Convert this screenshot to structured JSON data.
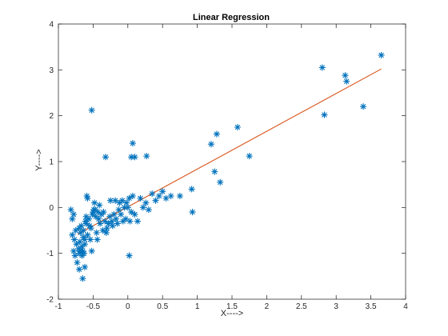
{
  "chart_data": {
    "type": "scatter",
    "title": "Linear Regression",
    "xlabel": "X---->",
    "ylabel": "Y---->",
    "xlim": [
      -1,
      4
    ],
    "ylim": [
      -2,
      4
    ],
    "xticks": [
      "-1",
      "-0.5",
      "0",
      "0.5",
      "1",
      "1.5",
      "2",
      "2.5",
      "3",
      "3.5",
      "4"
    ],
    "yticks": [
      "-2",
      "-1",
      "0",
      "1",
      "2",
      "3",
      "4"
    ],
    "grid": false,
    "series": [
      {
        "kind": "points",
        "marker": "*",
        "color": "#0072BD",
        "x": [
          -0.82,
          -0.8,
          -0.78,
          -0.8,
          -0.77,
          -0.75,
          -0.78,
          -0.76,
          -0.74,
          -0.73,
          -0.71,
          -0.7,
          -0.69,
          -0.68,
          -0.67,
          -0.66,
          -0.65,
          -0.64,
          -0.63,
          -0.62,
          -0.61,
          -0.6,
          -0.59,
          -0.58,
          -0.7,
          -0.68,
          -0.66,
          -0.64,
          -0.62,
          -0.6,
          -0.58,
          -0.56,
          -0.55,
          -0.54,
          -0.53,
          -0.52,
          -0.51,
          -0.5,
          -0.49,
          -0.48,
          -0.47,
          -0.46,
          -0.45,
          -0.44,
          -0.43,
          -0.42,
          -0.41,
          -0.4,
          -0.38,
          -0.36,
          -0.35,
          -0.33,
          -0.31,
          -0.3,
          -0.28,
          -0.26,
          -0.25,
          -0.23,
          -0.22,
          -0.2,
          -0.18,
          -0.17,
          -0.15,
          -0.13,
          -0.12,
          -0.1,
          -0.08,
          -0.07,
          -0.05,
          -0.03,
          -0.02,
          0.0,
          0.02,
          0.03,
          0.05,
          0.07,
          0.1,
          0.14,
          0.18,
          0.22,
          0.26,
          0.3,
          0.35,
          0.4,
          0.45,
          0.5,
          0.55,
          0.62,
          0.75,
          0.92,
          0.93,
          -0.52,
          -0.32,
          0.05,
          0.07,
          0.1,
          0.27,
          0.02,
          -0.7,
          -0.65,
          -0.62,
          1.2,
          1.25,
          1.28,
          1.33,
          1.58,
          1.75,
          2.8,
          2.83,
          3.13,
          3.15,
          3.39,
          3.65
        ],
        "y": [
          -0.05,
          -0.25,
          -0.15,
          -0.6,
          -0.7,
          -0.5,
          -0.95,
          -1.05,
          -0.8,
          -1.2,
          -0.9,
          -1.0,
          -0.75,
          -0.55,
          -0.4,
          -0.85,
          -0.95,
          -0.65,
          -1.0,
          -0.7,
          -0.3,
          -0.2,
          0.25,
          0.2,
          -0.45,
          -0.95,
          -1.05,
          -0.5,
          -0.8,
          -0.35,
          -0.6,
          -0.25,
          -0.4,
          -0.7,
          -0.45,
          -0.95,
          -0.15,
          -0.1,
          -0.05,
          0.1,
          -0.05,
          -0.2,
          -0.55,
          -0.7,
          -0.1,
          -0.25,
          0.05,
          -0.35,
          -0.15,
          -0.5,
          -0.1,
          -0.3,
          -0.55,
          -0.45,
          -0.35,
          -0.2,
          0.15,
          -0.3,
          -0.4,
          -0.15,
          0.15,
          -0.25,
          -0.35,
          -0.05,
          0.1,
          -0.15,
          0.15,
          -0.3,
          0.0,
          -0.25,
          0.1,
          0.0,
          0.2,
          -0.3,
          -0.1,
          0.25,
          -0.15,
          -0.3,
          0.2,
          0.0,
          0.1,
          -0.05,
          0.3,
          0.15,
          0.25,
          0.35,
          0.2,
          0.25,
          0.25,
          0.4,
          -0.1,
          2.12,
          1.1,
          1.1,
          1.4,
          1.1,
          1.12,
          -1.05,
          -1.35,
          -1.55,
          -1.3,
          1.38,
          0.78,
          1.6,
          0.55,
          1.75,
          1.12,
          3.05,
          2.02,
          2.88,
          2.75,
          2.2,
          3.32
        ]
      },
      {
        "kind": "fit-line",
        "color": "#D95319",
        "x": [
          -0.72,
          3.65
        ],
        "y": [
          -0.58,
          3.02
        ]
      }
    ]
  }
}
